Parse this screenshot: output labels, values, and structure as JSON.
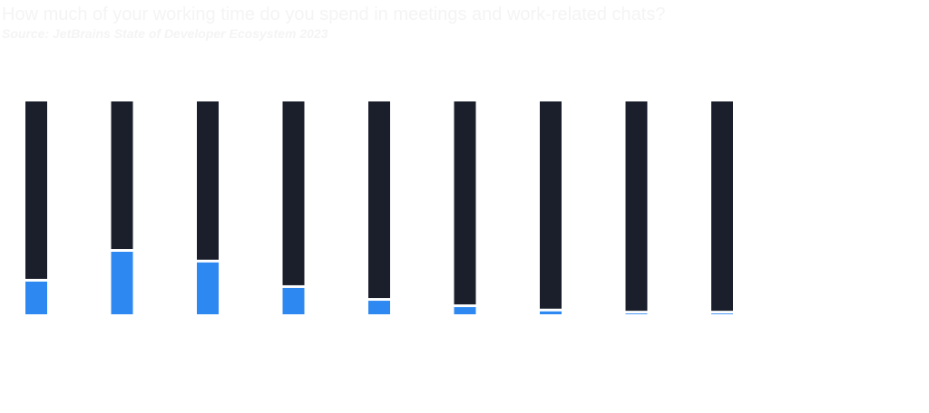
{
  "title": "How much of your working time do you spend in meetings and work-related chats?",
  "subtitle": "Source: JetBrains State of Developer Ecosystem 2023",
  "colors": {
    "background": "#ffffff",
    "value_fill": "#2e88f2",
    "remainder_fill": "#1a1f2b",
    "separator": "#ffffff",
    "faint_text": "#f1f1f1"
  },
  "chart_data": {
    "type": "bar",
    "stacked": true,
    "ylim": [
      0,
      100
    ],
    "grid": false,
    "categories": [
      "",
      "",
      "",
      "",
      "",
      "",
      "",
      "",
      ""
    ],
    "series": [
      {
        "values": [
          16,
          30,
          25,
          13,
          7,
          4,
          2,
          1,
          1
        ]
      },
      {
        "values": [
          84,
          70,
          75,
          87,
          93,
          96,
          98,
          99,
          99
        ]
      }
    ]
  }
}
